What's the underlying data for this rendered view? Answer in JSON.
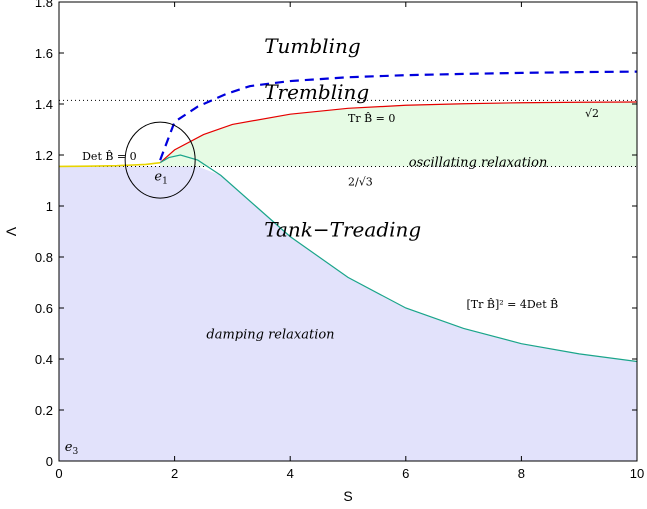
{
  "chart_data": {
    "type": "line",
    "xlabel": "S",
    "ylabel": "Λ",
    "xlim": [
      0,
      10
    ],
    "ylim": [
      0,
      1.8
    ],
    "x_ticks": [
      "0",
      "2",
      "4",
      "6",
      "8",
      "10"
    ],
    "y_ticks": [
      "0",
      "0.2",
      "0.4",
      "0.6",
      "0.8",
      "1",
      "1.2",
      "1.4",
      "1.6",
      "1.8"
    ],
    "grid": false,
    "colors": {
      "tank_fill": "#e2e2fb",
      "oscillating_fill": "#e6fbe4",
      "tumbling_boundary": "#0000dd",
      "trace_zero": "#e60000",
      "discriminant_zero": "#1aa58a",
      "det_zero": "#e8d400"
    },
    "series": [
      {
        "name": "tumbling-boundary",
        "style": "dashed",
        "x": [
          1.75,
          2.0,
          2.4,
          2.9,
          3.3,
          4.0,
          5.0,
          6.0,
          7.0,
          8.0,
          9.0,
          10.0
        ],
        "y": [
          1.18,
          1.33,
          1.39,
          1.44,
          1.47,
          1.49,
          1.505,
          1.513,
          1.518,
          1.522,
          1.525,
          1.527
        ]
      },
      {
        "name": "trace-zero",
        "style": "solid",
        "x": [
          1.75,
          2.0,
          2.5,
          3.0,
          4.0,
          5.0,
          6.0,
          7.0,
          8.0,
          9.0,
          10.0
        ],
        "y": [
          1.17,
          1.22,
          1.28,
          1.32,
          1.36,
          1.383,
          1.395,
          1.401,
          1.405,
          1.407,
          1.408
        ]
      },
      {
        "name": "discriminant-zero",
        "style": "solid",
        "x": [
          1.75,
          1.9,
          2.1,
          2.4,
          2.8,
          3.4,
          4.0,
          5.0,
          6.0,
          7.0,
          8.0,
          9.0,
          10.0
        ],
        "y": [
          1.17,
          1.19,
          1.2,
          1.18,
          1.12,
          1.0,
          0.88,
          0.72,
          0.6,
          0.52,
          0.46,
          0.42,
          0.39
        ]
      },
      {
        "name": "det-zero",
        "style": "solid",
        "x": [
          0,
          0.5,
          1.0,
          1.5,
          1.75
        ],
        "y": [
          1.155,
          1.156,
          1.158,
          1.163,
          1.17
        ]
      }
    ],
    "reference_lines": [
      {
        "y": 1.4142,
        "label": "√2"
      },
      {
        "y": 1.1547,
        "label": "2/√3"
      }
    ],
    "annotations": {
      "tumbling": "Tumbling",
      "trembling": "Trembling",
      "tank_treading": "Tank−Treading",
      "oscillating": "oscillating relaxation",
      "damping": "damping relaxation",
      "trace_eq": "Tr B̂ = 0",
      "det_eq": "Det B̂ = 0",
      "disc_eq": "[Tr B̂]² = 4Det B̂",
      "sqrt2": "√2",
      "two_over_sqrt3": "2/√3",
      "e1": "e",
      "e1_sub": "1",
      "e3": "e",
      "e3_sub": "3"
    }
  }
}
